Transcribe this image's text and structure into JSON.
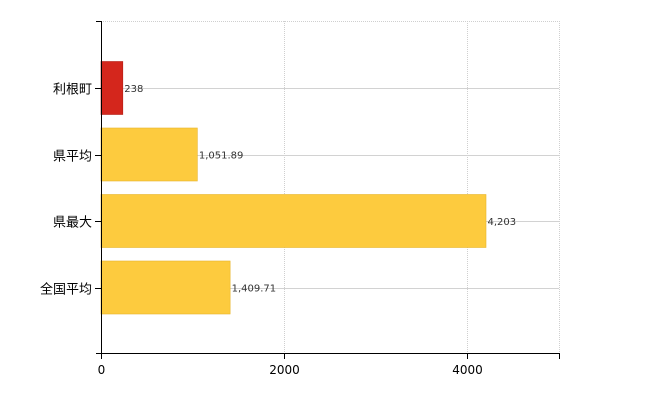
{
  "chart_data": {
    "type": "bar",
    "orientation": "horizontal",
    "categories": [
      "利根町",
      "県平均",
      "県最大",
      "全国平均"
    ],
    "values": [
      238,
      1051.89,
      4203,
      1409.71
    ],
    "value_labels": [
      "238",
      "1,051.89",
      "4,203",
      "1,409.71"
    ],
    "bar_colors": [
      "#d4261c",
      "#fdcb3e",
      "#fdcb3e",
      "#fdcb3e"
    ],
    "bar_edge_colors": [
      "#b31e15",
      "#e8b52c",
      "#e8b52c",
      "#e8b52c"
    ],
    "xlim": [
      0,
      5000
    ],
    "xticks": [
      0,
      2000,
      4000
    ],
    "xtick_labels": [
      "0",
      "2000",
      "4000"
    ],
    "grid": true,
    "title": "",
    "xlabel": "",
    "ylabel": ""
  }
}
